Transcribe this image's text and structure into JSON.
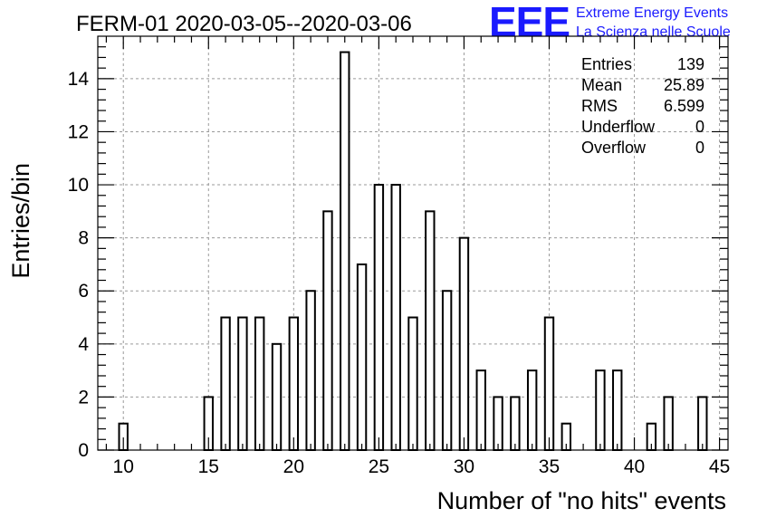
{
  "chart_data": {
    "type": "bar",
    "title": "FERM-01 2020-03-05--2020-03-06",
    "xlabel": "Number of \"no hits\" events",
    "ylabel": "Entries/bin",
    "xlim": [
      8.5,
      45.5
    ],
    "ylim": [
      0,
      15.6
    ],
    "bin_width": 0.5,
    "x_ticks": [
      10,
      15,
      20,
      25,
      30,
      35,
      40,
      45
    ],
    "y_ticks": [
      0,
      2,
      4,
      6,
      8,
      10,
      12,
      14
    ],
    "grid": true,
    "bins": [
      {
        "x": 10,
        "value": 1
      },
      {
        "x": 15,
        "value": 2
      },
      {
        "x": 16,
        "value": 5
      },
      {
        "x": 17,
        "value": 5
      },
      {
        "x": 18,
        "value": 5
      },
      {
        "x": 19,
        "value": 4
      },
      {
        "x": 20,
        "value": 5
      },
      {
        "x": 21,
        "value": 6
      },
      {
        "x": 22,
        "value": 9
      },
      {
        "x": 23,
        "value": 15
      },
      {
        "x": 24,
        "value": 7
      },
      {
        "x": 25,
        "value": 10
      },
      {
        "x": 26,
        "value": 10
      },
      {
        "x": 27,
        "value": 5
      },
      {
        "x": 28,
        "value": 9
      },
      {
        "x": 29,
        "value": 6
      },
      {
        "x": 30,
        "value": 8
      },
      {
        "x": 31,
        "value": 3
      },
      {
        "x": 32,
        "value": 2
      },
      {
        "x": 33,
        "value": 2
      },
      {
        "x": 34,
        "value": 3
      },
      {
        "x": 35,
        "value": 5
      },
      {
        "x": 36,
        "value": 1
      },
      {
        "x": 38,
        "value": 3
      },
      {
        "x": 39,
        "value": 3
      },
      {
        "x": 41,
        "value": 1
      },
      {
        "x": 42,
        "value": 2
      },
      {
        "x": 44,
        "value": 2
      }
    ],
    "stats": [
      {
        "label": "Entries",
        "value": "139"
      },
      {
        "label": "Mean",
        "value": "25.89"
      },
      {
        "label": "RMS",
        "value": "6.599"
      },
      {
        "label": "Underflow",
        "value": "0"
      },
      {
        "label": "Overflow",
        "value": "0"
      }
    ],
    "stats_placement": "top-right"
  },
  "logo": {
    "mark": "EEE",
    "line1": "Extreme Energy Events",
    "line2": "La Scienza nelle Scuole",
    "color": "#1a1aff"
  }
}
